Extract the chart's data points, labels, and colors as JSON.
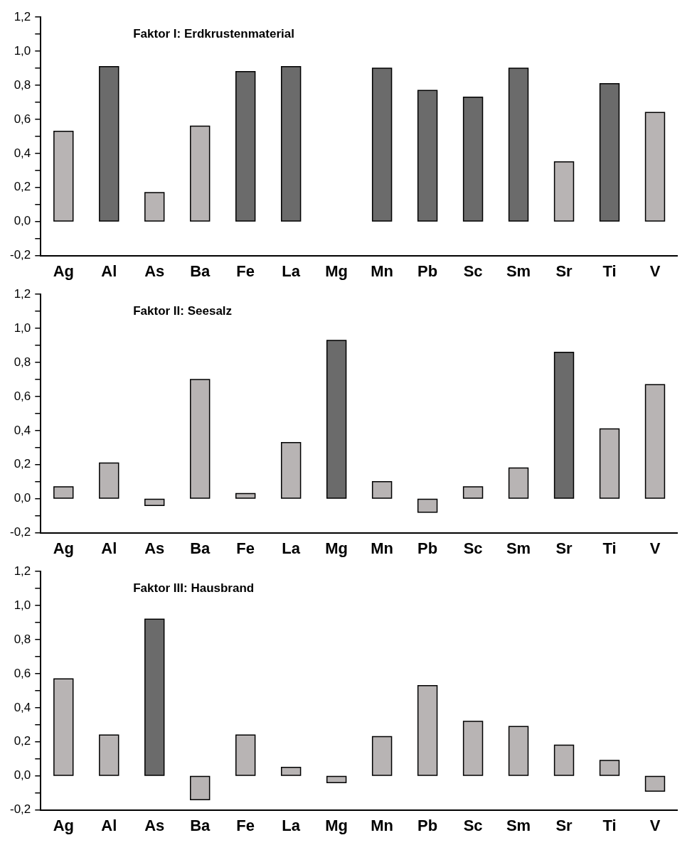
{
  "chart_data": [
    {
      "type": "bar",
      "title": "Faktor I: Erdkrustenmaterial",
      "categories": [
        "Ag",
        "Al",
        "As",
        "Ba",
        "Fe",
        "La",
        "Mg",
        "Mn",
        "Pb",
        "Sc",
        "Sm",
        "Sr",
        "Ti",
        "V"
      ],
      "values": [
        0.53,
        0.91,
        0.17,
        0.56,
        0.88,
        0.91,
        null,
        0.9,
        0.77,
        0.73,
        0.9,
        0.35,
        0.81,
        0.64
      ],
      "colors": [
        "#b8b4b4",
        "#6b6b6b",
        "#b8b4b4",
        "#b8b4b4",
        "#6b6b6b",
        "#6b6b6b",
        "#6b6b6b",
        "#6b6b6b",
        "#6b6b6b",
        "#6b6b6b",
        "#6b6b6b",
        "#b8b4b4",
        "#6b6b6b",
        "#b8b4b4"
      ],
      "ylim": [
        -0.2,
        1.2
      ],
      "yticks": [
        {
          "value": -0.2,
          "label": "-0,2"
        },
        {
          "value": -0.1,
          "label": null
        },
        {
          "value": 0,
          "label": "0,0"
        },
        {
          "value": 0.1,
          "label": null
        },
        {
          "value": 0.2,
          "label": "0,2"
        },
        {
          "value": 0.3,
          "label": null
        },
        {
          "value": 0.4,
          "label": "0,4"
        },
        {
          "value": 0.5,
          "label": null
        },
        {
          "value": 0.6,
          "label": "0,6"
        },
        {
          "value": 0.7,
          "label": null
        },
        {
          "value": 0.8,
          "label": "0,8"
        },
        {
          "value": 0.9,
          "label": null
        },
        {
          "value": 1.0,
          "label": "1,0"
        },
        {
          "value": 1.1,
          "label": null
        },
        {
          "value": 1.2,
          "label": "1,2"
        }
      ],
      "grid": false,
      "legend": false
    },
    {
      "type": "bar",
      "title": "Faktor II: Seesalz",
      "categories": [
        "Ag",
        "Al",
        "As",
        "Ba",
        "Fe",
        "La",
        "Mg",
        "Mn",
        "Pb",
        "Sc",
        "Sm",
        "Sr",
        "Ti",
        "V"
      ],
      "values": [
        0.07,
        0.21,
        -0.04,
        0.7,
        0.03,
        0.33,
        0.93,
        0.1,
        -0.08,
        0.07,
        0.18,
        0.86,
        0.41,
        0.67
      ],
      "colors": [
        "#b8b4b4",
        "#b8b4b4",
        "#b8b4b4",
        "#b8b4b4",
        "#b8b4b4",
        "#b8b4b4",
        "#6b6b6b",
        "#b8b4b4",
        "#b8b4b4",
        "#b8b4b4",
        "#b8b4b4",
        "#6b6b6b",
        "#b8b4b4",
        "#b8b4b4"
      ],
      "ylim": [
        -0.2,
        1.2
      ],
      "yticks": [
        {
          "value": -0.2,
          "label": "-0,2"
        },
        {
          "value": -0.1,
          "label": null
        },
        {
          "value": 0,
          "label": "0,0"
        },
        {
          "value": 0.1,
          "label": null
        },
        {
          "value": 0.2,
          "label": "0,2"
        },
        {
          "value": 0.3,
          "label": null
        },
        {
          "value": 0.4,
          "label": "0,4"
        },
        {
          "value": 0.5,
          "label": null
        },
        {
          "value": 0.6,
          "label": "0,6"
        },
        {
          "value": 0.7,
          "label": null
        },
        {
          "value": 0.8,
          "label": "0,8"
        },
        {
          "value": 0.9,
          "label": null
        },
        {
          "value": 1.0,
          "label": "1,0"
        },
        {
          "value": 1.1,
          "label": null
        },
        {
          "value": 1.2,
          "label": "1,2"
        }
      ],
      "grid": false,
      "legend": false
    },
    {
      "type": "bar",
      "title": "Faktor III: Hausbrand",
      "categories": [
        "Ag",
        "Al",
        "As",
        "Ba",
        "Fe",
        "La",
        "Mg",
        "Mn",
        "Pb",
        "Sc",
        "Sm",
        "Sr",
        "Ti",
        "V"
      ],
      "values": [
        0.57,
        0.24,
        0.92,
        -0.14,
        0.24,
        0.05,
        -0.04,
        0.23,
        0.53,
        0.32,
        0.29,
        0.18,
        0.09,
        -0.09
      ],
      "colors": [
        "#b8b4b4",
        "#b8b4b4",
        "#6b6b6b",
        "#b8b4b4",
        "#b8b4b4",
        "#b8b4b4",
        "#b8b4b4",
        "#b8b4b4",
        "#b8b4b4",
        "#b8b4b4",
        "#b8b4b4",
        "#b8b4b4",
        "#b8b4b4",
        "#b8b4b4"
      ],
      "ylim": [
        -0.2,
        1.2
      ],
      "yticks": [
        {
          "value": -0.2,
          "label": "-0,2"
        },
        {
          "value": -0.1,
          "label": null
        },
        {
          "value": 0,
          "label": "0,0"
        },
        {
          "value": 0.1,
          "label": null
        },
        {
          "value": 0.2,
          "label": "0,2"
        },
        {
          "value": 0.3,
          "label": null
        },
        {
          "value": 0.4,
          "label": "0,4"
        },
        {
          "value": 0.5,
          "label": null
        },
        {
          "value": 0.6,
          "label": "0,6"
        },
        {
          "value": 0.7,
          "label": null
        },
        {
          "value": 0.8,
          "label": "0,8"
        },
        {
          "value": 0.9,
          "label": null
        },
        {
          "value": 1.0,
          "label": "1,0"
        },
        {
          "value": 1.1,
          "label": null
        },
        {
          "value": 1.2,
          "label": "1,2"
        }
      ],
      "grid": false,
      "legend": false
    }
  ]
}
